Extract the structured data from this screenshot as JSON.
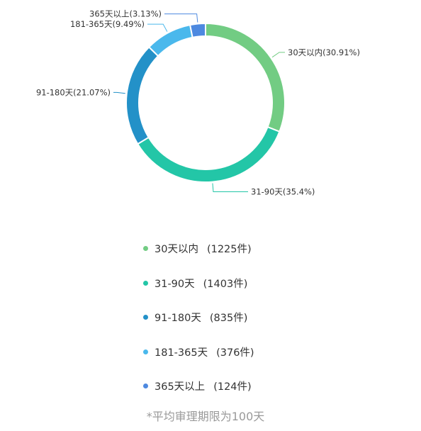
{
  "chart_data": {
    "type": "pie",
    "variant": "donut",
    "slices": [
      {
        "label": "30天以内(30.91%)",
        "name": "30天以内",
        "percent": 30.91,
        "count_text": "(1225件)",
        "value": 1225,
        "color": "#72CC83"
      },
      {
        "label": "31-90天(35.4%)",
        "name": "31-90天",
        "percent": 35.4,
        "count_text": "(1403件)",
        "value": 1403,
        "color": "#23C6A7"
      },
      {
        "label": "91-180天(21.07%)",
        "name": "91-180天",
        "percent": 21.07,
        "count_text": "(835件)",
        "value": 835,
        "color": "#2391C8"
      },
      {
        "label": "181-365天(9.49%)",
        "name": "181-365天",
        "percent": 9.49,
        "count_text": "(376件)",
        "value": 376,
        "color": "#4AB8EC"
      },
      {
        "label": "365天以上(3.13%)",
        "name": "365天以上",
        "percent": 3.13,
        "count_text": "(124件)",
        "value": 124,
        "color": "#4D89E0"
      }
    ],
    "legend_position": "bottom",
    "footnote": "*平均审理期限为100天"
  }
}
